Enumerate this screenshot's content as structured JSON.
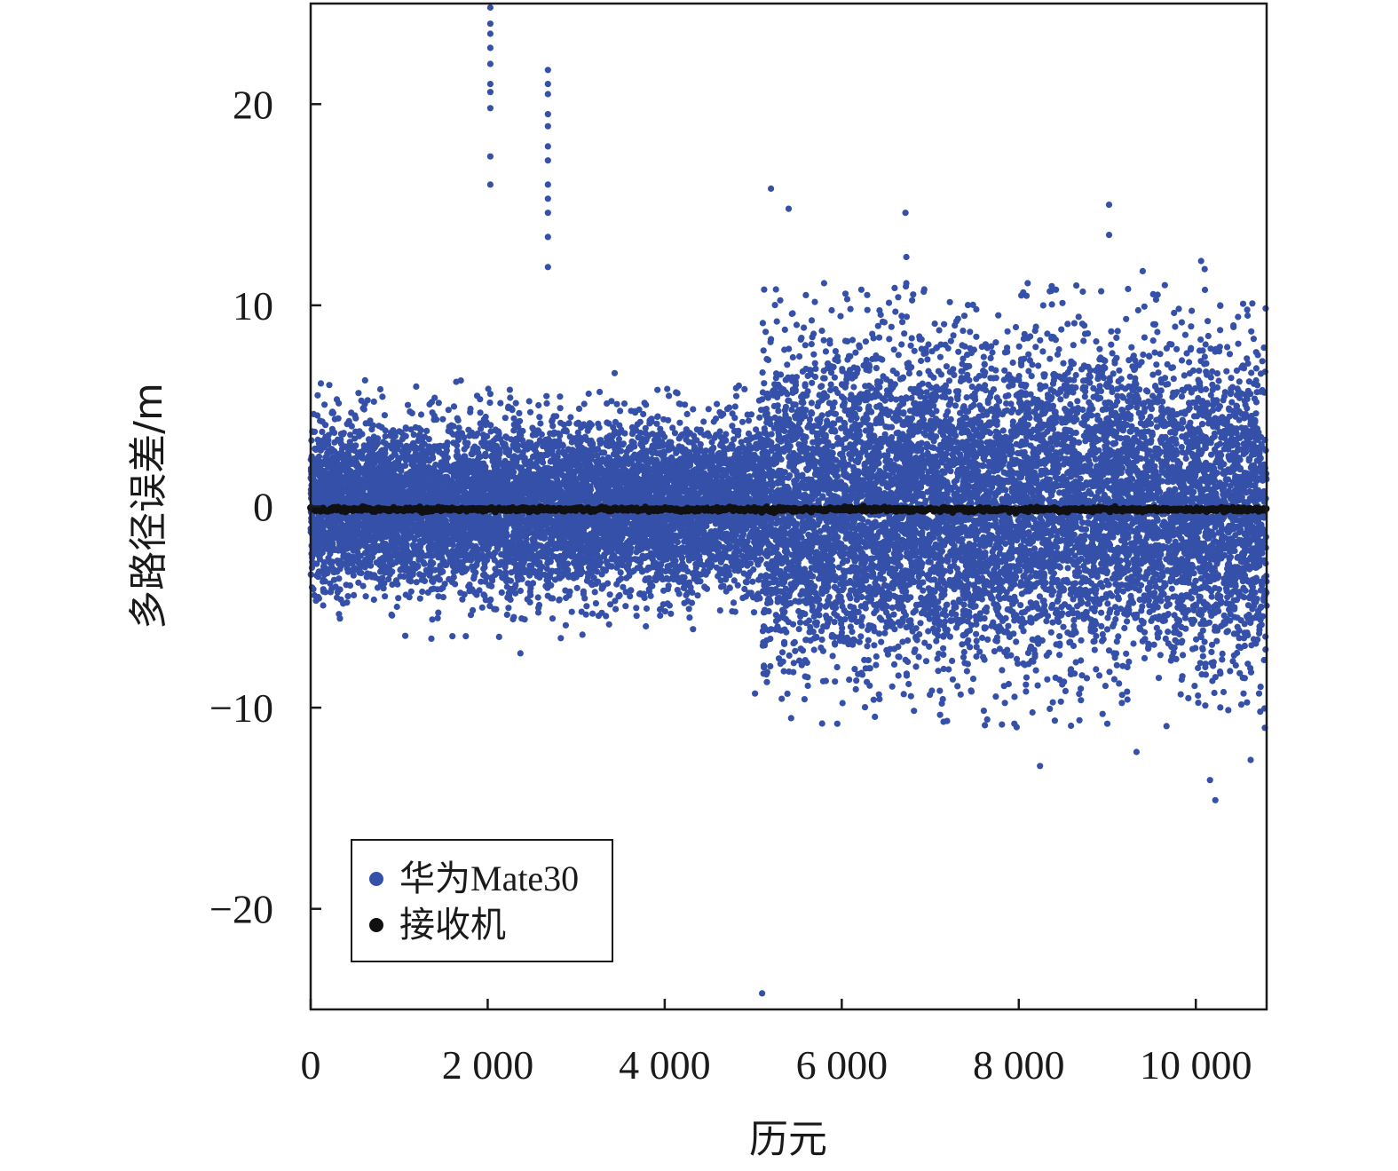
{
  "chart_data": {
    "type": "scatter",
    "title": "",
    "xlabel": "历元",
    "ylabel": "多路径误差/m",
    "xlim": [
      0,
      10800
    ],
    "ylim": [
      -25,
      25
    ],
    "x_ticks": [
      0,
      2000,
      4000,
      6000,
      8000,
      10000
    ],
    "x_tick_labels": [
      "0",
      "2 000",
      "4 000",
      "6 000",
      "8 000",
      "10 000"
    ],
    "y_ticks": [
      20,
      10,
      0,
      -10,
      -20
    ],
    "y_tick_labels": [
      "20",
      "10",
      "0",
      "−10",
      "−20"
    ],
    "grid": false,
    "legend_position": "bottom-left",
    "series": [
      {
        "name": "华为Mate30",
        "color": "#3550a8",
        "note_points": "dense noise cloud; values sampled below",
        "segments": [
          {
            "x_range": [
              0,
              5100
            ],
            "sigma": 2.0,
            "max_abs": 7
          },
          {
            "x_range": [
              5100,
              10800
            ],
            "sigma": 3.8,
            "max_abs": 11
          }
        ],
        "outliers": [
          {
            "x": 2030,
            "y": 24.8
          },
          {
            "x": 2030,
            "y": 24.0
          },
          {
            "x": 2030,
            "y": 23.5
          },
          {
            "x": 2030,
            "y": 22.8
          },
          {
            "x": 2030,
            "y": 22.0
          },
          {
            "x": 2030,
            "y": 21.0
          },
          {
            "x": 2030,
            "y": 20.6
          },
          {
            "x": 2030,
            "y": 19.8
          },
          {
            "x": 2030,
            "y": 17.4
          },
          {
            "x": 2030,
            "y": 16.0
          },
          {
            "x": 2680,
            "y": 21.7
          },
          {
            "x": 2680,
            "y": 21.0
          },
          {
            "x": 2680,
            "y": 20.5
          },
          {
            "x": 2680,
            "y": 19.5
          },
          {
            "x": 2680,
            "y": 18.9
          },
          {
            "x": 2680,
            "y": 17.9
          },
          {
            "x": 2680,
            "y": 17.2
          },
          {
            "x": 2680,
            "y": 16.0
          },
          {
            "x": 2680,
            "y": 15.3
          },
          {
            "x": 2680,
            "y": 14.6
          },
          {
            "x": 2680,
            "y": 13.4
          },
          {
            "x": 2680,
            "y": 11.9
          },
          {
            "x": 5200,
            "y": 15.8
          },
          {
            "x": 5400,
            "y": 14.8
          },
          {
            "x": 6720,
            "y": 14.6
          },
          {
            "x": 6730,
            "y": 12.4
          },
          {
            "x": 6730,
            "y": 11.1
          },
          {
            "x": 9020,
            "y": 15.0
          },
          {
            "x": 9020,
            "y": 13.5
          },
          {
            "x": 10060,
            "y": 12.2
          },
          {
            "x": 10100,
            "y": 11.8
          },
          {
            "x": 5800,
            "y": 11.1
          },
          {
            "x": 8100,
            "y": 11.1
          },
          {
            "x": 9400,
            "y": 11.7
          },
          {
            "x": 9650,
            "y": 11.0
          },
          {
            "x": 2370,
            "y": -7.3
          },
          {
            "x": 4320,
            "y": -6.1
          },
          {
            "x": 5100,
            "y": -24.2
          },
          {
            "x": 8240,
            "y": -12.9
          },
          {
            "x": 9330,
            "y": -12.2
          },
          {
            "x": 10160,
            "y": -13.6
          },
          {
            "x": 10220,
            "y": -14.6
          },
          {
            "x": 10620,
            "y": -12.6
          },
          {
            "x": 5020,
            "y": -9.3
          },
          {
            "x": 5950,
            "y": -10.8
          },
          {
            "x": 7150,
            "y": -10.7
          },
          {
            "x": 7950,
            "y": -10.8
          },
          {
            "x": 8590,
            "y": -10.9
          },
          {
            "x": 9000,
            "y": -10.8
          },
          {
            "x": 10780,
            "y": -11.0
          }
        ]
      },
      {
        "name": "接收机",
        "color": "#111111",
        "note_points": "values near zero across all epochs",
        "x_range": [
          0,
          10800
        ],
        "y": -0.15
      }
    ]
  }
}
